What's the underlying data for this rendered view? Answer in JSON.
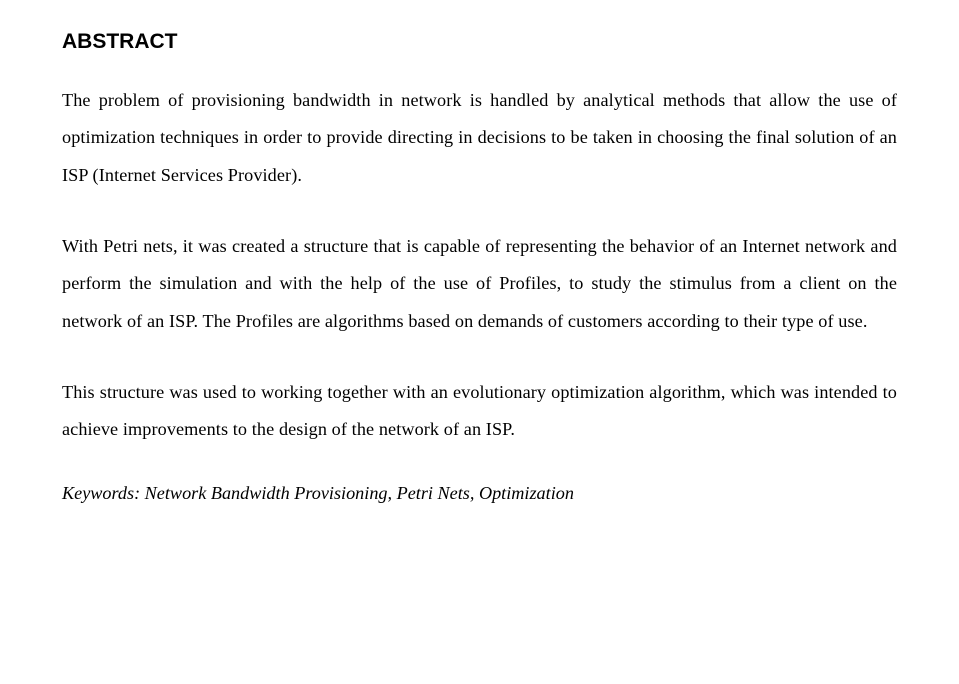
{
  "title": "ABSTRACT",
  "paragraphs": {
    "p1": "The problem of provisioning bandwidth in network is handled by analytical methods that allow the use of optimization techniques in order to provide directing in decisions to be taken in choosing the final solution of an ISP (Internet Services Provider).",
    "p2": "With Petri nets, it was created a structure that is capable of representing the behavior of an Internet network and perform the simulation and with the help of the use of Profiles, to study the stimulus from a client on the network of an ISP. The Profiles are algorithms based on demands of customers according to their type of use.",
    "p3": "This structure was used to working together with an evolutionary optimization algorithm, which was intended to achieve improvements to the design of the network of an ISP."
  },
  "keywords": "Keywords: Network Bandwidth Provisioning, Petri Nets, Optimization",
  "colors": {
    "text": "#000000",
    "background": "#ffffff"
  },
  "typography": {
    "title_font": "Arial",
    "title_size_pt": 16,
    "title_weight": "bold",
    "body_font": "Times New Roman",
    "body_size_pt": 14,
    "body_line_height": 2.05,
    "keywords_style": "italic"
  }
}
